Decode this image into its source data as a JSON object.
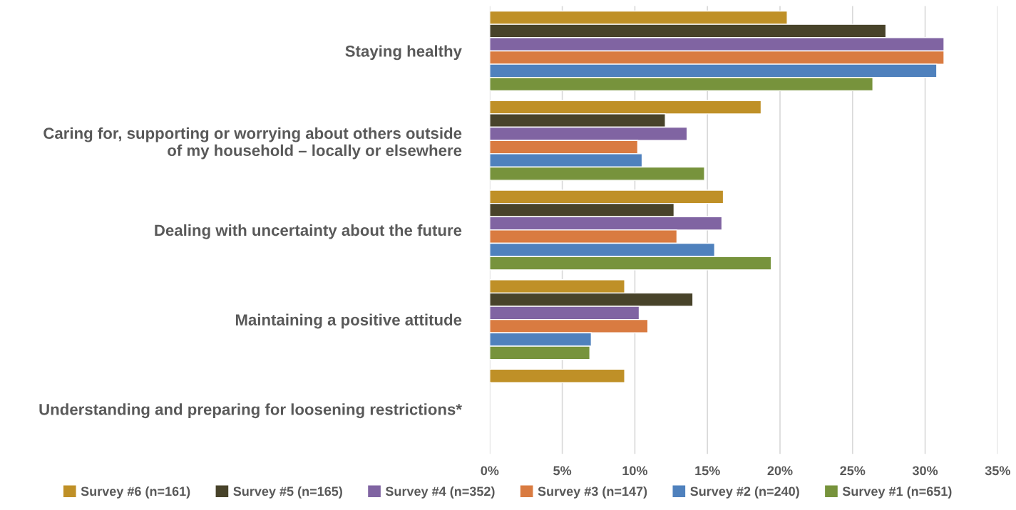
{
  "chart_data": {
    "type": "bar",
    "orientation": "horizontal",
    "categories": [
      "Staying healthy",
      "Caring for, supporting or worrying about others outside\nof my household – locally or elsewhere",
      "Dealing with uncertainty about the future",
      "Maintaining a positive attitude",
      "Understanding and preparing for loosening restrictions*"
    ],
    "series": [
      {
        "name": "Survey #6 (n=161)",
        "color": "#bf9027",
        "values": [
          20.5,
          18.7,
          16.1,
          9.3,
          9.3
        ]
      },
      {
        "name": "Survey #5 (n=165)",
        "color": "#48432a",
        "values": [
          27.3,
          12.1,
          12.7,
          14.0,
          null
        ]
      },
      {
        "name": "Survey #4 (n=352)",
        "color": "#8064a2",
        "values": [
          31.3,
          13.6,
          16.0,
          10.3,
          null
        ]
      },
      {
        "name": "Survey #3 (n=147)",
        "color": "#d97b41",
        "values": [
          31.3,
          10.2,
          12.9,
          10.9,
          null
        ]
      },
      {
        "name": "Survey #2 (n=240)",
        "color": "#4f81bd",
        "values": [
          30.8,
          10.5,
          15.5,
          7.0,
          null
        ]
      },
      {
        "name": "Survey #1 (n=651)",
        "color": "#77933c",
        "values": [
          26.4,
          14.8,
          19.4,
          6.9,
          null
        ]
      }
    ],
    "xlim": [
      0,
      35
    ],
    "xticks": [
      {
        "value": 0,
        "label": "0%"
      },
      {
        "value": 5,
        "label": "5%"
      },
      {
        "value": 10,
        "label": "10%"
      },
      {
        "value": 15,
        "label": "15%"
      },
      {
        "value": 20,
        "label": "20%"
      },
      {
        "value": 25,
        "label": "25%"
      },
      {
        "value": 30,
        "label": "30%"
      },
      {
        "value": 35,
        "label": "35%"
      }
    ],
    "grid": "x",
    "legend": "bottom"
  }
}
